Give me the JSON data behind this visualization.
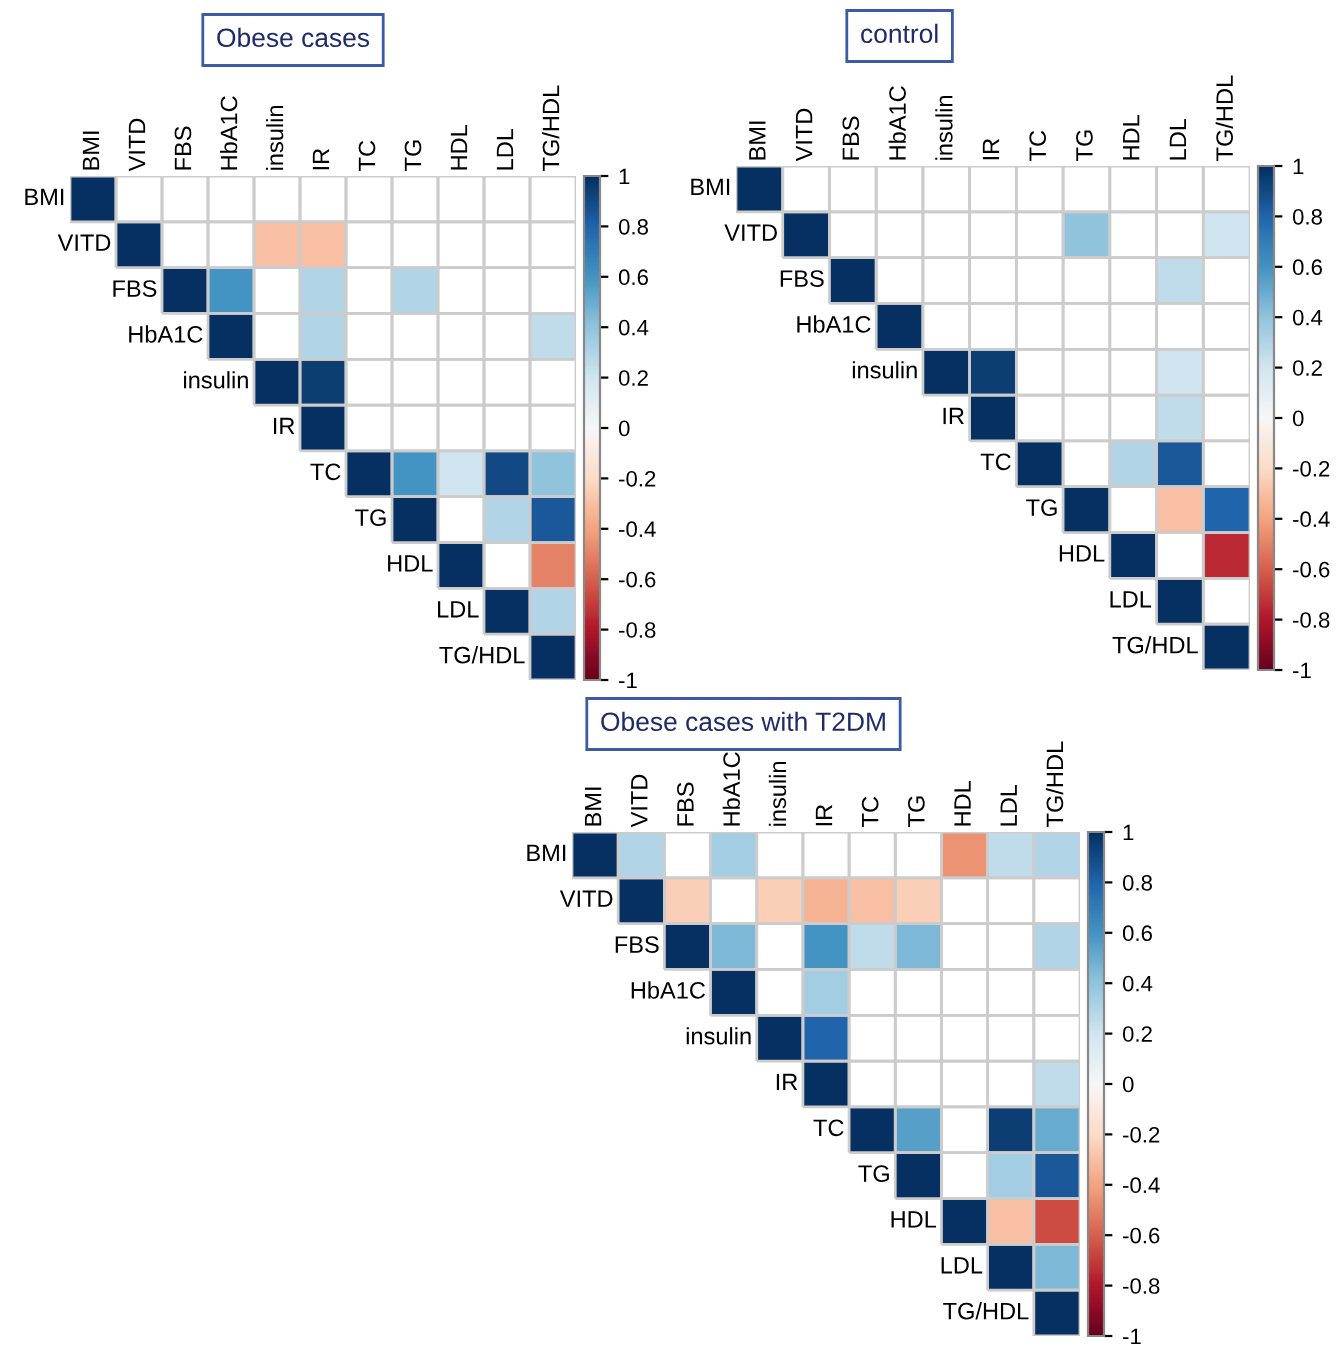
{
  "chart_data": [
    {
      "type": "heatmap",
      "title": "Obese cases",
      "categories": [
        "BMI",
        "VITD",
        "FBS",
        "HbA1C",
        "insulin",
        "IR",
        "TC",
        "TG",
        "HDL",
        "LDL",
        "TG/HDL"
      ],
      "y_categories": [
        "BMI",
        "VITD",
        "FBS",
        "HbA1C",
        "insulin",
        "IR",
        "TC",
        "TG",
        "HDL",
        "LDL",
        "TG/HDL"
      ],
      "cells": [
        [
          1,
          null,
          null,
          null,
          null,
          null,
          null,
          null,
          null,
          null,
          null
        ],
        [
          null,
          1,
          null,
          null,
          -0.3,
          -0.3,
          null,
          null,
          null,
          null,
          null
        ],
        [
          null,
          null,
          1,
          0.6,
          null,
          0.3,
          null,
          0.3,
          null,
          null,
          null
        ],
        [
          null,
          null,
          null,
          1,
          null,
          0.3,
          null,
          null,
          null,
          null,
          0.25
        ],
        [
          null,
          null,
          null,
          null,
          1,
          0.95,
          null,
          null,
          null,
          null,
          null
        ],
        [
          null,
          null,
          null,
          null,
          null,
          1,
          null,
          null,
          null,
          null,
          null
        ],
        [
          null,
          null,
          null,
          null,
          null,
          null,
          1,
          0.6,
          0.2,
          0.9,
          0.4
        ],
        [
          null,
          null,
          null,
          null,
          null,
          null,
          null,
          1,
          null,
          0.3,
          0.85
        ],
        [
          null,
          null,
          null,
          null,
          null,
          null,
          null,
          null,
          1,
          null,
          -0.5
        ],
        [
          null,
          null,
          null,
          null,
          null,
          null,
          null,
          null,
          null,
          1,
          0.3
        ],
        [
          null,
          null,
          null,
          null,
          null,
          null,
          null,
          null,
          null,
          null,
          1
        ]
      ],
      "clim": [
        -1,
        1
      ],
      "cticks": [
        -1,
        -0.8,
        -0.6,
        -0.4,
        -0.2,
        0,
        0.2,
        0.4,
        0.6,
        0.8,
        1
      ]
    },
    {
      "type": "heatmap",
      "title": "control",
      "categories": [
        "BMI",
        "VITD",
        "FBS",
        "HbA1C",
        "insulin",
        "IR",
        "TC",
        "TG",
        "HDL",
        "LDL",
        "TG/HDL"
      ],
      "y_categories": [
        "BMI",
        "VITD",
        "FBS",
        "HbA1C",
        "insulin",
        "IR",
        "TC",
        "TG",
        "HDL",
        "LDL",
        "TG/HDL"
      ],
      "cells": [
        [
          1,
          null,
          null,
          null,
          null,
          null,
          null,
          null,
          null,
          null,
          null
        ],
        [
          null,
          1,
          null,
          null,
          null,
          null,
          null,
          0.4,
          null,
          null,
          0.2
        ],
        [
          null,
          null,
          1,
          null,
          null,
          null,
          null,
          null,
          null,
          0.25,
          null
        ],
        [
          null,
          null,
          null,
          1,
          null,
          null,
          null,
          null,
          null,
          null,
          null
        ],
        [
          null,
          null,
          null,
          null,
          1,
          0.95,
          null,
          null,
          null,
          0.2,
          null
        ],
        [
          null,
          null,
          null,
          null,
          null,
          1,
          null,
          null,
          null,
          0.25,
          null
        ],
        [
          null,
          null,
          null,
          null,
          null,
          null,
          1,
          null,
          0.3,
          0.85,
          null
        ],
        [
          null,
          null,
          null,
          null,
          null,
          null,
          null,
          1,
          null,
          -0.3,
          0.8
        ],
        [
          null,
          null,
          null,
          null,
          null,
          null,
          null,
          null,
          1,
          null,
          -0.75
        ],
        [
          null,
          null,
          null,
          null,
          null,
          null,
          null,
          null,
          null,
          1,
          null
        ],
        [
          null,
          null,
          null,
          null,
          null,
          null,
          null,
          null,
          null,
          null,
          1
        ]
      ],
      "clim": [
        -1,
        1
      ],
      "cticks": [
        -1,
        -0.8,
        -0.6,
        -0.4,
        -0.2,
        0,
        0.2,
        0.4,
        0.6,
        0.8,
        1
      ]
    },
    {
      "type": "heatmap",
      "title": "Obese cases with T2DM",
      "categories": [
        "BMI",
        "VITD",
        "FBS",
        "HbA1C",
        "insulin",
        "IR",
        "TC",
        "TG",
        "HDL",
        "LDL",
        "TG/HDL"
      ],
      "y_categories": [
        "BMI",
        "VITD",
        "FBS",
        "HbA1C",
        "insulin",
        "IR",
        "TC",
        "TG",
        "HDL",
        "LDL",
        "TG/HDL"
      ],
      "cells": [
        [
          1,
          0.3,
          null,
          0.35,
          null,
          null,
          null,
          null,
          -0.45,
          0.25,
          0.3
        ],
        [
          null,
          1,
          -0.25,
          null,
          -0.25,
          -0.35,
          -0.3,
          -0.25,
          null,
          null,
          null
        ],
        [
          null,
          null,
          1,
          0.45,
          null,
          0.6,
          0.25,
          0.45,
          null,
          null,
          0.3
        ],
        [
          null,
          null,
          null,
          1,
          null,
          0.35,
          null,
          null,
          null,
          null,
          null
        ],
        [
          null,
          null,
          null,
          null,
          1,
          0.8,
          null,
          null,
          null,
          null,
          null
        ],
        [
          null,
          null,
          null,
          null,
          null,
          1,
          null,
          null,
          null,
          null,
          0.25
        ],
        [
          null,
          null,
          null,
          null,
          null,
          null,
          1,
          0.55,
          null,
          0.95,
          0.5
        ],
        [
          null,
          null,
          null,
          null,
          null,
          null,
          null,
          1,
          null,
          0.35,
          0.85
        ],
        [
          null,
          null,
          null,
          null,
          null,
          null,
          null,
          null,
          1,
          -0.3,
          -0.65
        ],
        [
          null,
          null,
          null,
          null,
          null,
          null,
          null,
          null,
          null,
          1,
          0.45
        ],
        [
          null,
          null,
          null,
          null,
          null,
          null,
          null,
          null,
          null,
          null,
          1
        ]
      ],
      "clim": [
        -1,
        1
      ],
      "cticks": [
        -1,
        -0.8,
        -0.6,
        -0.4,
        -0.2,
        0,
        0.2,
        0.4,
        0.6,
        0.8,
        1
      ]
    }
  ]
}
